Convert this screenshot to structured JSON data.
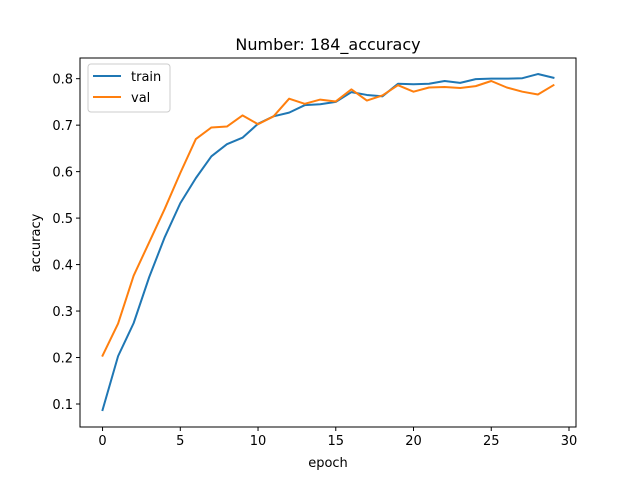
{
  "chart_data": {
    "type": "line",
    "title": "Number: 184_accuracy",
    "xlabel": "epoch",
    "ylabel": "accuracy",
    "xlim": [
      -1.45,
      30.45
    ],
    "ylim": [
      0.0505,
      0.8445
    ],
    "xticks": [
      0,
      5,
      10,
      15,
      20,
      25,
      30
    ],
    "yticks": [
      0.1,
      0.2,
      0.3,
      0.4,
      0.5,
      0.6,
      0.7,
      0.8
    ],
    "grid": false,
    "legend_position": "top-left",
    "x": [
      0,
      1,
      2,
      3,
      4,
      5,
      6,
      7,
      8,
      9,
      10,
      11,
      12,
      13,
      14,
      15,
      16,
      17,
      18,
      19,
      20,
      21,
      22,
      23,
      24,
      25,
      26,
      27,
      28,
      29
    ],
    "series": [
      {
        "name": "train",
        "color": "#1f77b4",
        "values": [
          0.087,
          0.203,
          0.274,
          0.373,
          0.459,
          0.532,
          0.586,
          0.633,
          0.659,
          0.673,
          0.703,
          0.719,
          0.727,
          0.743,
          0.745,
          0.75,
          0.771,
          0.765,
          0.762,
          0.789,
          0.788,
          0.789,
          0.795,
          0.791,
          0.799,
          0.8,
          0.8,
          0.801,
          0.81,
          0.802
        ]
      },
      {
        "name": "val",
        "color": "#ff7f0e",
        "values": [
          0.204,
          0.273,
          0.376,
          0.448,
          0.52,
          0.597,
          0.67,
          0.695,
          0.697,
          0.721,
          0.702,
          0.719,
          0.757,
          0.746,
          0.755,
          0.751,
          0.777,
          0.753,
          0.764,
          0.786,
          0.772,
          0.781,
          0.782,
          0.78,
          0.784,
          0.795,
          0.781,
          0.772,
          0.766,
          0.786
        ]
      }
    ]
  }
}
